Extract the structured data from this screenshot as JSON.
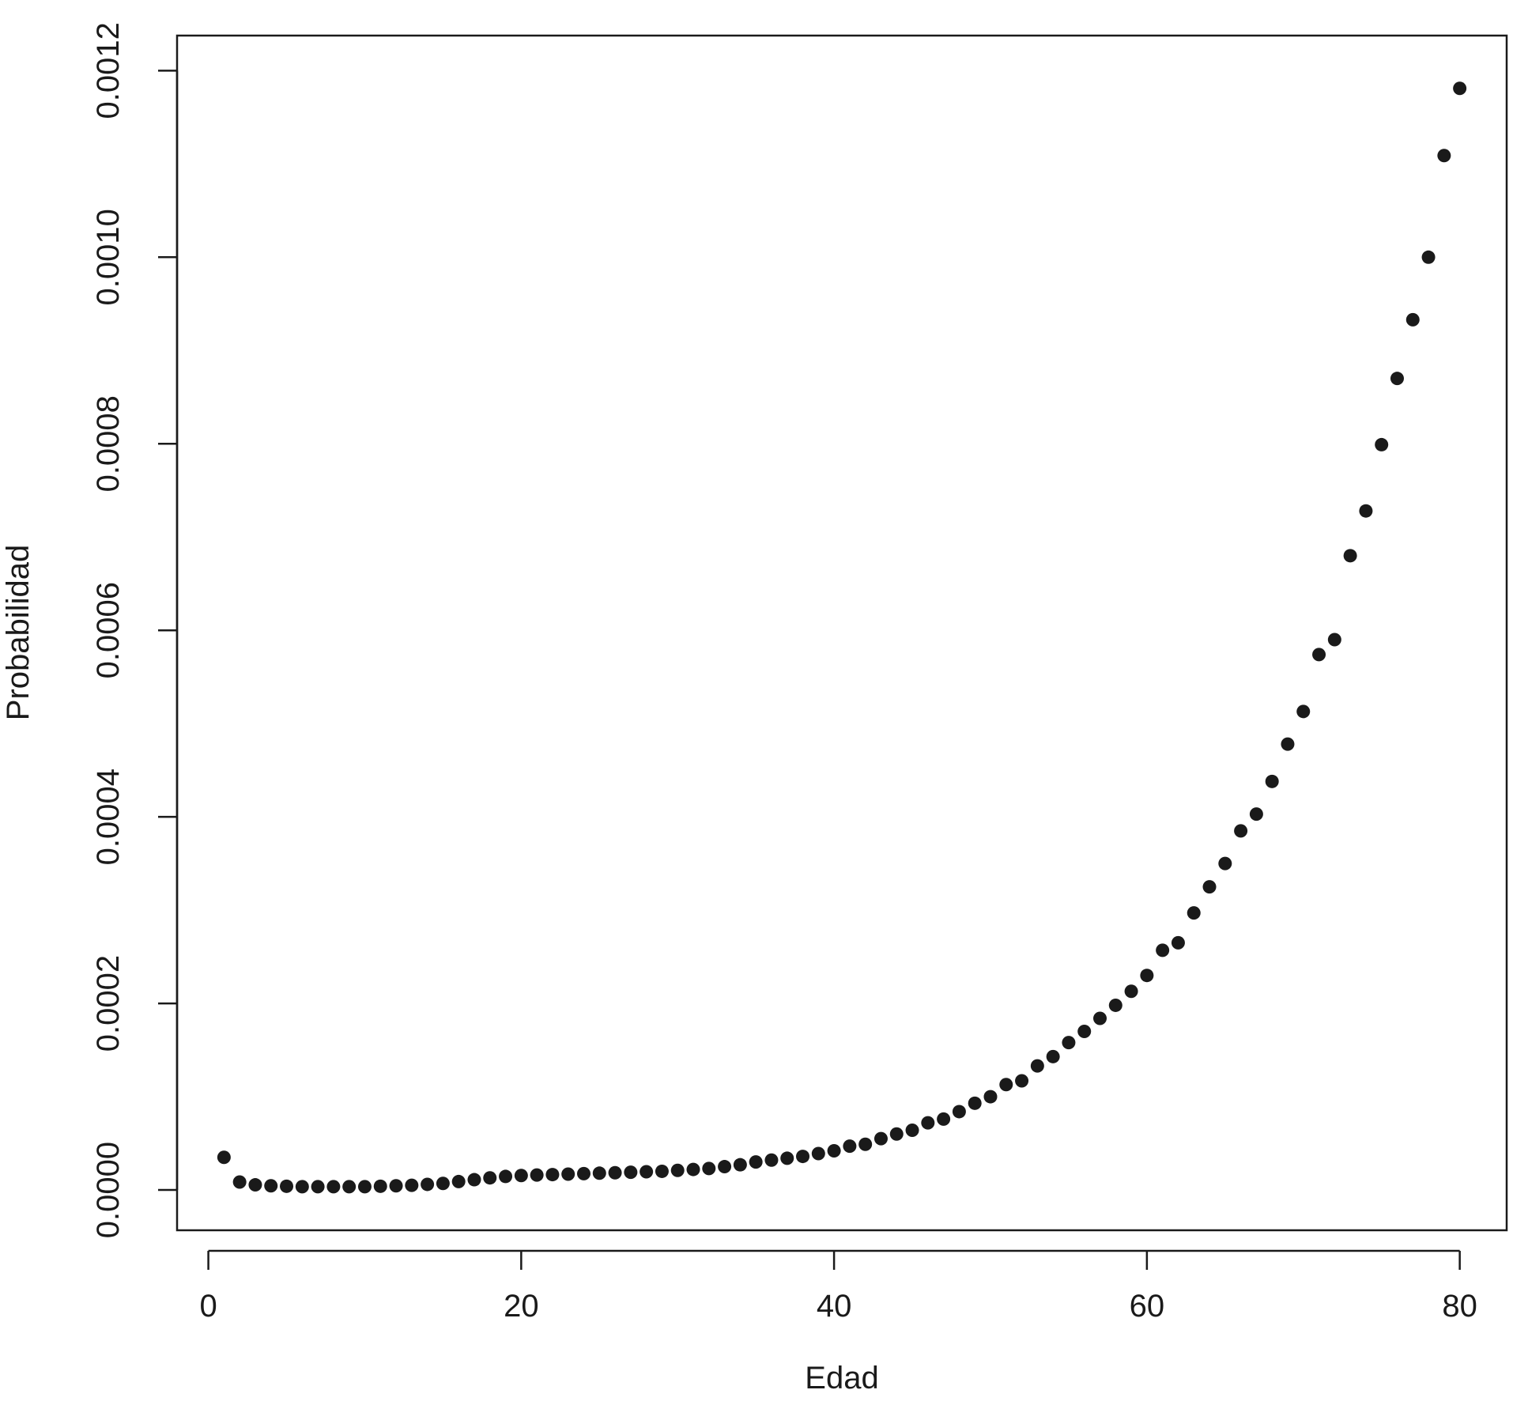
{
  "chart_data": {
    "type": "scatter",
    "title": "",
    "xlabel": "Edad",
    "ylabel": "Probabilidad",
    "xlim": [
      -2,
      83
    ],
    "ylim": [
      -4.32e-05,
      0.0012376
    ],
    "x_ticks": [
      0,
      20,
      40,
      60,
      80
    ],
    "x_tick_labels": [
      "0",
      "20",
      "40",
      "60",
      "80"
    ],
    "y_ticks": [
      0,
      0.0002,
      0.0004,
      0.0006,
      0.0008,
      0.001,
      0.0012
    ],
    "y_tick_labels": [
      "0.0000",
      "0.0002",
      "0.0004",
      "0.0006",
      "0.0008",
      "0.0010",
      "0.0012"
    ],
    "grid": false,
    "legend": "none",
    "marker_color": "#1a1a1a",
    "series": [
      {
        "x": [
          1,
          2,
          3,
          4,
          5,
          6,
          7,
          8,
          9,
          10,
          11,
          12,
          13,
          14,
          15,
          16,
          17,
          18,
          19,
          20,
          21,
          22,
          23,
          24,
          25,
          26,
          27,
          28,
          29,
          30,
          31,
          32,
          33,
          34,
          35,
          36,
          37,
          38,
          39,
          40,
          41,
          42,
          43,
          44,
          45,
          46,
          47,
          48,
          49,
          50,
          51,
          52,
          53,
          54,
          55,
          56,
          57,
          58,
          59,
          60,
          61,
          62,
          63,
          64,
          65,
          66,
          67,
          68,
          69,
          70,
          71,
          72,
          73,
          74,
          75,
          76,
          77,
          78,
          79,
          80
        ],
        "y": [
          3.5e-05,
          8.5e-06,
          5.5e-06,
          4.5e-06,
          4e-06,
          3.5e-06,
          3.5e-06,
          3.5e-06,
          3.5e-06,
          3.5e-06,
          4e-06,
          4.5e-06,
          5e-06,
          6e-06,
          7e-06,
          9e-06,
          1.1e-05,
          1.3e-05,
          1.45e-05,
          1.55e-05,
          1.6e-05,
          1.65e-05,
          1.7e-05,
          1.75e-05,
          1.8e-05,
          1.85e-05,
          1.9e-05,
          1.95e-05,
          2e-05,
          2.1e-05,
          2.2e-05,
          2.3e-05,
          2.5e-05,
          2.7e-05,
          3e-05,
          3.2e-05,
          3.4e-05,
          3.6e-05,
          3.9e-05,
          4.2e-05,
          4.7e-05,
          4.9e-05,
          5.5e-05,
          6e-05,
          6.4e-05,
          7.2e-05,
          7.6e-05,
          8.4e-05,
          9.3e-05,
          0.0001,
          0.000113,
          0.000117,
          0.000133,
          0.000143,
          0.000158,
          0.00017,
          0.000184,
          0.000198,
          0.000213,
          0.00023,
          0.000257,
          0.000265,
          0.000297,
          0.000325,
          0.00035,
          0.000385,
          0.000403,
          0.000438,
          0.000478,
          0.000513,
          0.000574,
          0.00059,
          0.00068,
          0.000728,
          0.000799,
          0.00087,
          0.000933,
          0.001,
          0.001109,
          0.001181
        ]
      }
    ]
  }
}
